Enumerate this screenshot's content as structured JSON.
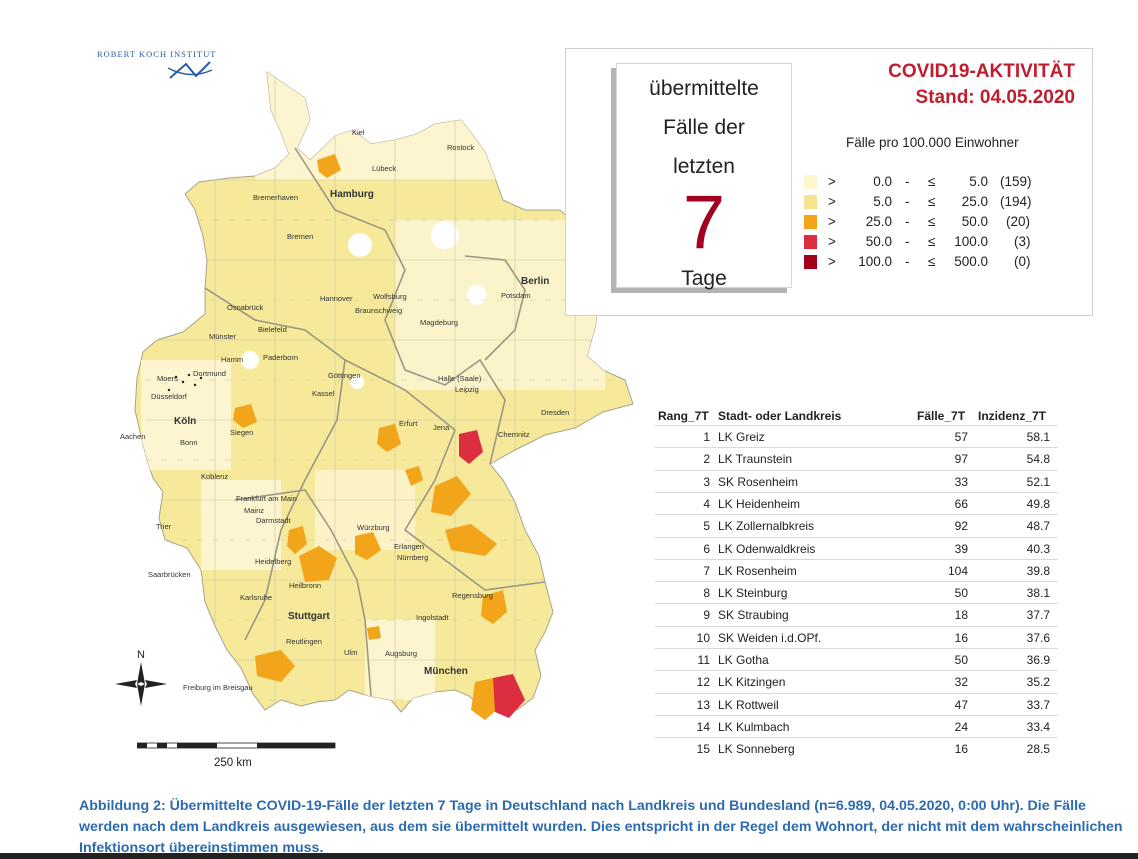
{
  "logo": {
    "text": "ROBERT KOCH INSTITUT"
  },
  "colors": {
    "class1": "#fdf6cf",
    "class2": "#f6e58f",
    "class3": "#f2a51a",
    "class4": "#dc2e40",
    "class5": "#a3001b",
    "title": "#c01e2e",
    "caption": "#2d6bb0",
    "border": "#b8b5a8"
  },
  "panel": {
    "box_line1": "übermittelte",
    "box_line2": "Fälle der",
    "box_line3": "letzten",
    "box_number": "7",
    "box_line4": "Tage",
    "title": "COVID19-AKTIVITÄT",
    "stand": "Stand: 04.05.2020",
    "legend_title": "Fälle pro 100.000 Einwohner",
    "legend": [
      {
        "gt": ">",
        "low": "0.0",
        "dash": "-",
        "le": "≤",
        "high": "5.0",
        "count": "(159)"
      },
      {
        "gt": ">",
        "low": "5.0",
        "dash": "-",
        "le": "≤",
        "high": "25.0",
        "count": "(194)"
      },
      {
        "gt": ">",
        "low": "25.0",
        "dash": "-",
        "le": "≤",
        "high": "50.0",
        "count": "(20)"
      },
      {
        "gt": ">",
        "low": "50.0",
        "dash": "-",
        "le": "≤",
        "high": "100.0",
        "count": "(3)"
      },
      {
        "gt": ">",
        "low": "100.0",
        "dash": "-",
        "le": "≤",
        "high": "500.0",
        "count": "(0)"
      }
    ]
  },
  "table": {
    "headers": {
      "rank": "Rang_7T",
      "name": "Stadt- oder Landkreis",
      "cases": "Fälle_7T",
      "incidence": "Inzidenz_7T"
    },
    "rows": [
      {
        "rank": "1",
        "name": "LK Greiz",
        "cases": "57",
        "incidence": "58.1"
      },
      {
        "rank": "2",
        "name": "LK Traunstein",
        "cases": "97",
        "incidence": "54.8"
      },
      {
        "rank": "3",
        "name": "SK Rosenheim",
        "cases": "33",
        "incidence": "52.1"
      },
      {
        "rank": "4",
        "name": "LK Heidenheim",
        "cases": "66",
        "incidence": "49.8"
      },
      {
        "rank": "5",
        "name": "LK Zollernalbkreis",
        "cases": "92",
        "incidence": "48.7"
      },
      {
        "rank": "6",
        "name": "LK Odenwaldkreis",
        "cases": "39",
        "incidence": "40.3"
      },
      {
        "rank": "7",
        "name": "LK Rosenheim",
        "cases": "104",
        "incidence": "39.8"
      },
      {
        "rank": "8",
        "name": "LK Steinburg",
        "cases": "50",
        "incidence": "38.1"
      },
      {
        "rank": "9",
        "name": "SK Straubing",
        "cases": "18",
        "incidence": "37.7"
      },
      {
        "rank": "10",
        "name": "SK Weiden i.d.OPf.",
        "cases": "16",
        "incidence": "37.6"
      },
      {
        "rank": "11",
        "name": "LK Gotha",
        "cases": "50",
        "incidence": "36.9"
      },
      {
        "rank": "12",
        "name": "LK Kitzingen",
        "cases": "32",
        "incidence": "35.2"
      },
      {
        "rank": "13",
        "name": "LK Rottweil",
        "cases": "47",
        "incidence": "33.7"
      },
      {
        "rank": "14",
        "name": "LK Kulmbach",
        "cases": "24",
        "incidence": "33.4"
      },
      {
        "rank": "15",
        "name": "LK Sonneberg",
        "cases": "16",
        "incidence": "28.5"
      }
    ]
  },
  "map": {
    "cities": [
      {
        "name": "Kiel",
        "big": false
      },
      {
        "name": "Rostock",
        "big": false
      },
      {
        "name": "Lübeck",
        "big": false
      },
      {
        "name": "Hamburg",
        "big": true
      },
      {
        "name": "Bremerhaven",
        "big": false
      },
      {
        "name": "Bremen",
        "big": false
      },
      {
        "name": "Berlin",
        "big": true
      },
      {
        "name": "Potsdam",
        "big": false
      },
      {
        "name": "Hannover",
        "big": false
      },
      {
        "name": "Wolfsburg",
        "big": false
      },
      {
        "name": "Braunschweig",
        "big": false
      },
      {
        "name": "Magdeburg",
        "big": false
      },
      {
        "name": "Osnabrück",
        "big": false
      },
      {
        "name": "Bielefeld",
        "big": false
      },
      {
        "name": "Münster",
        "big": false
      },
      {
        "name": "Hamm",
        "big": false
      },
      {
        "name": "Paderborn",
        "big": false
      },
      {
        "name": "Moers",
        "big": false
      },
      {
        "name": "Dortmund",
        "big": false
      },
      {
        "name": "Düsseldorf",
        "big": false
      },
      {
        "name": "Göttingen",
        "big": false
      },
      {
        "name": "Kassel",
        "big": false
      },
      {
        "name": "Halle (Saale)",
        "big": false
      },
      {
        "name": "Leipzig",
        "big": false
      },
      {
        "name": "Dresden",
        "big": false
      },
      {
        "name": "Köln",
        "big": true
      },
      {
        "name": "Aachen",
        "big": false
      },
      {
        "name": "Bonn",
        "big": false
      },
      {
        "name": "Siegen",
        "big": false
      },
      {
        "name": "Erfurt",
        "big": false
      },
      {
        "name": "Jena",
        "big": false
      },
      {
        "name": "Chemnitz",
        "big": false
      },
      {
        "name": "Koblenz",
        "big": false
      },
      {
        "name": "Frankfurt am Main",
        "big": false
      },
      {
        "name": "Mainz",
        "big": false
      },
      {
        "name": "Darmstadt",
        "big": false
      },
      {
        "name": "Würzburg",
        "big": false
      },
      {
        "name": "Trier",
        "big": false
      },
      {
        "name": "Erlangen",
        "big": false
      },
      {
        "name": "Nürnberg",
        "big": false
      },
      {
        "name": "Heidelberg",
        "big": false
      },
      {
        "name": "Saarbrücken",
        "big": false
      },
      {
        "name": "Heilbronn",
        "big": false
      },
      {
        "name": "Karlsruhe",
        "big": false
      },
      {
        "name": "Regensburg",
        "big": false
      },
      {
        "name": "Stuttgart",
        "big": true
      },
      {
        "name": "Ingolstadt",
        "big": false
      },
      {
        "name": "Reutlingen",
        "big": false
      },
      {
        "name": "Ulm",
        "big": false
      },
      {
        "name": "Augsburg",
        "big": false
      },
      {
        "name": "München",
        "big": true
      },
      {
        "name": "Freiburg im Breisgau",
        "big": false
      }
    ],
    "north": "N",
    "scale": "250 km"
  },
  "caption": "Abbildung 2: Übermittelte COVID-19-Fälle der letzten 7 Tage in Deutschland nach Landkreis und Bundesland (n=6.989, 04.05.2020, 0:00 Uhr). Die Fälle werden nach dem Landkreis ausgewiesen, aus dem sie übermittelt wurden. Dies entspricht in der Regel dem Wohnort, der nicht mit dem wahrscheinlichen Infektionsort übereinstimmen muss."
}
